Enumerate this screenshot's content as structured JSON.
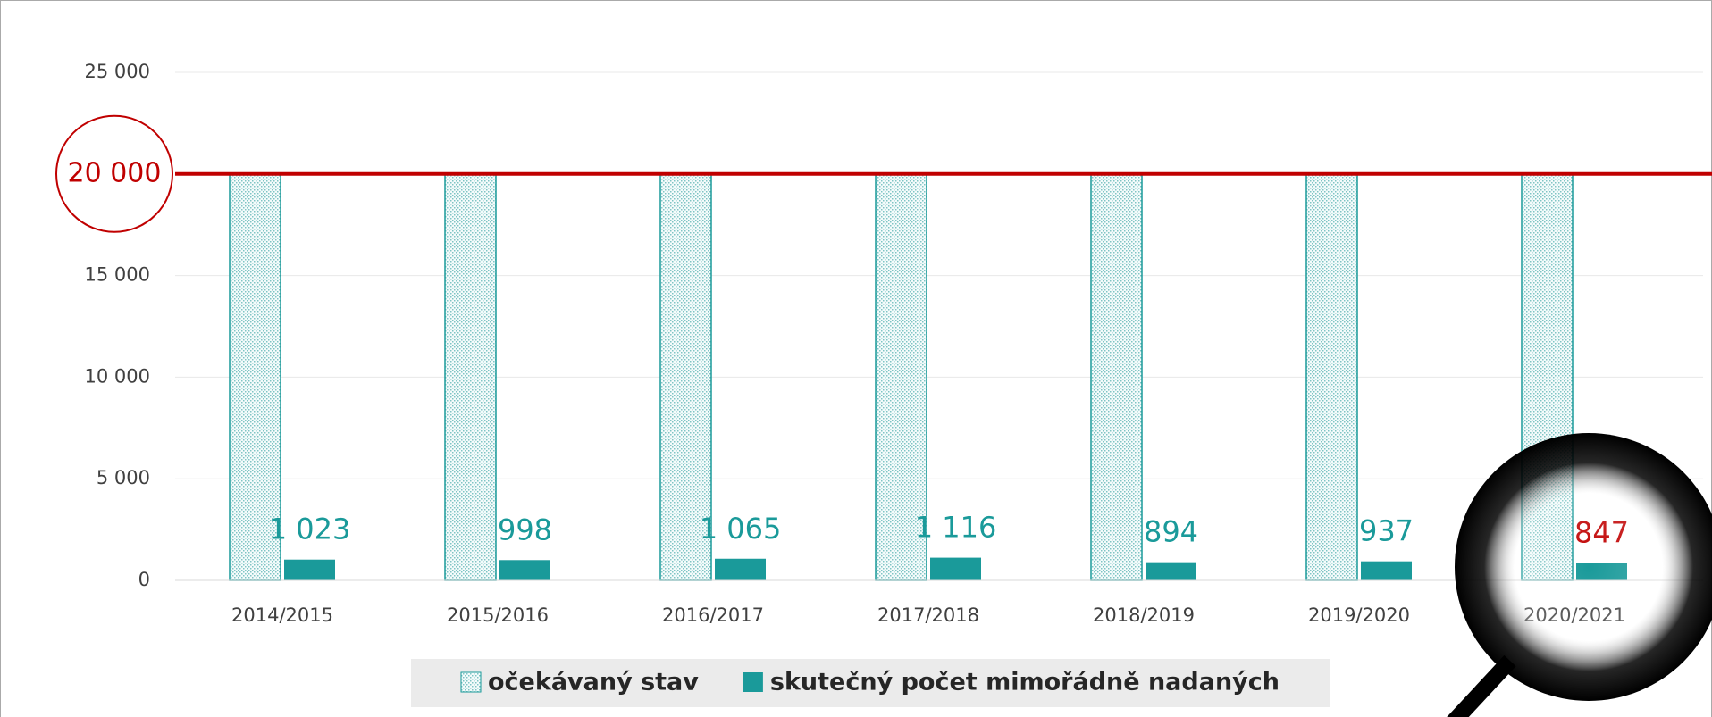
{
  "chart_data": {
    "type": "bar",
    "categories": [
      "2014/2015",
      "2015/2016",
      "2016/2017",
      "2017/2018",
      "2018/2019",
      "2019/2020",
      "2020/2021"
    ],
    "series": [
      {
        "name": "očekávaný stav",
        "color": "#1a9a9a",
        "hatched": true,
        "values": [
          20000,
          20000,
          20000,
          20000,
          20000,
          20000,
          20000
        ]
      },
      {
        "name": "skutečný počet mimořádně nadaných",
        "color": "#1a9a9a",
        "hatched": false,
        "values": [
          1023,
          998,
          1065,
          1116,
          894,
          937,
          847
        ],
        "value_labels": [
          "1 023",
          "998",
          "1 065",
          "1 116",
          "894",
          "937",
          "847"
        ],
        "value_label_colors": [
          "#1a9a9a",
          "#1a9a9a",
          "#1a9a9a",
          "#1a9a9a",
          "#1a9a9a",
          "#1a9a9a",
          "#c00000"
        ]
      }
    ],
    "ylim": [
      0,
      25000
    ],
    "yticks": [
      {
        "value": 0,
        "label": "0"
      },
      {
        "value": 5000,
        "label": "5 000"
      },
      {
        "value": 10000,
        "label": "10 000"
      },
      {
        "value": 15000,
        "label": "15 000"
      },
      {
        "value": 20000,
        "label": "20 000"
      },
      {
        "value": 25000,
        "label": "25 000"
      }
    ],
    "hidden_tick_labels": [
      4
    ],
    "grid": true,
    "reference_line": {
      "value": 20000,
      "label": "20 000",
      "color": "#c00000"
    },
    "legend": "bottom"
  }
}
